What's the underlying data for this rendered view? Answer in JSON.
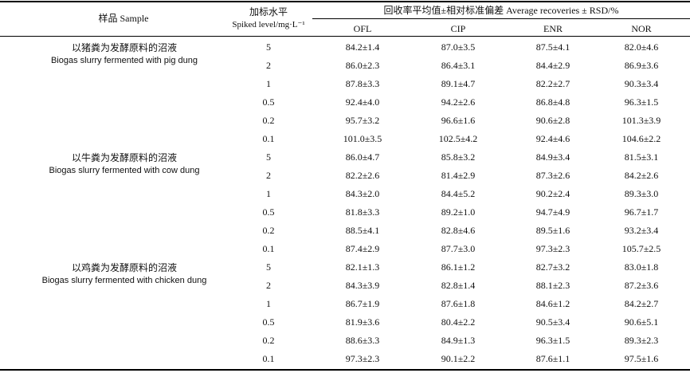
{
  "header": {
    "sample": "样品 Sample",
    "spiked_zh": "加标水平",
    "spiked_en": "Spiked level/mg·L⁻¹",
    "recovery": "回收率平均值±相对标准偏差 Average recoveries ± RSD/%",
    "columns": [
      "OFL",
      "CIP",
      "ENR",
      "NOR"
    ]
  },
  "groups": [
    {
      "name_zh": "以猪粪为发酵原料的沼液",
      "name_en": "Biogas slurry fermented with pig dung",
      "rows": [
        {
          "level": "5",
          "ofl": "84.2±1.4",
          "cip": "87.0±3.5",
          "enr": "87.5±4.1",
          "nor": "82.0±4.6"
        },
        {
          "level": "2",
          "ofl": "86.0±2.3",
          "cip": "86.4±3.1",
          "enr": "84.4±2.9",
          "nor": "86.9±3.6"
        },
        {
          "level": "1",
          "ofl": "87.8±3.3",
          "cip": "89.1±4.7",
          "enr": "82.2±2.7",
          "nor": "90.3±3.4"
        },
        {
          "level": "0.5",
          "ofl": "92.4±4.0",
          "cip": "94.2±2.6",
          "enr": "86.8±4.8",
          "nor": "96.3±1.5"
        },
        {
          "level": "0.2",
          "ofl": "95.7±3.2",
          "cip": "96.6±1.6",
          "enr": "90.6±2.8",
          "nor": "101.3±3.9"
        },
        {
          "level": "0.1",
          "ofl": "101.0±3.5",
          "cip": "102.5±4.2",
          "enr": "92.4±4.6",
          "nor": "104.6±2.2"
        }
      ]
    },
    {
      "name_zh": "以牛粪为发酵原料的沼液",
      "name_en": "Biogas slurry fermented with cow dung",
      "rows": [
        {
          "level": "5",
          "ofl": "86.0±4.7",
          "cip": "85.8±3.2",
          "enr": "84.9±3.4",
          "nor": "81.5±3.1"
        },
        {
          "level": "2",
          "ofl": "82.2±2.6",
          "cip": "81.4±2.9",
          "enr": "87.3±2.6",
          "nor": "84.2±2.6"
        },
        {
          "level": "1",
          "ofl": "84.3±2.0",
          "cip": "84.4±5.2",
          "enr": "90.2±2.4",
          "nor": "89.3±3.0"
        },
        {
          "level": "0.5",
          "ofl": "81.8±3.3",
          "cip": "89.2±1.0",
          "enr": "94.7±4.9",
          "nor": "96.7±1.7"
        },
        {
          "level": "0.2",
          "ofl": "88.5±4.1",
          "cip": "82.8±4.6",
          "enr": "89.5±1.6",
          "nor": "93.2±3.4"
        },
        {
          "level": "0.1",
          "ofl": "87.4±2.9",
          "cip": "87.7±3.0",
          "enr": "97.3±2.3",
          "nor": "105.7±2.5"
        }
      ]
    },
    {
      "name_zh": "以鸡粪为发酵原料的沼液",
      "name_en": "Biogas slurry fermented with chicken dung",
      "rows": [
        {
          "level": "5",
          "ofl": "82.1±1.3",
          "cip": "86.1±1.2",
          "enr": "82.7±3.2",
          "nor": "83.0±1.8"
        },
        {
          "level": "2",
          "ofl": "84.3±3.9",
          "cip": "82.8±1.4",
          "enr": "88.1±2.3",
          "nor": "87.2±3.6"
        },
        {
          "level": "1",
          "ofl": "86.7±1.9",
          "cip": "87.6±1.8",
          "enr": "84.6±1.2",
          "nor": "84.2±2.7"
        },
        {
          "level": "0.5",
          "ofl": "81.9±3.6",
          "cip": "80.4±2.2",
          "enr": "90.5±3.4",
          "nor": "90.6±5.1"
        },
        {
          "level": "0.2",
          "ofl": "88.6±3.3",
          "cip": "84.9±1.3",
          "enr": "96.3±1.5",
          "nor": "89.3±2.3"
        },
        {
          "level": "0.1",
          "ofl": "97.3±2.3",
          "cip": "90.1±2.2",
          "enr": "87.6±1.1",
          "nor": "97.5±1.6"
        }
      ]
    }
  ]
}
